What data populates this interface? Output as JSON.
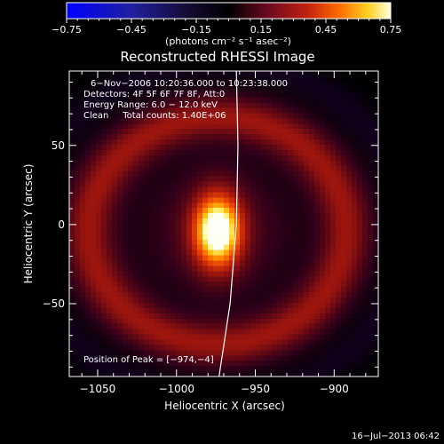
{
  "chart_data": {
    "type": "heatmap",
    "title": "Reconstructed RHESSI Image",
    "xlabel": "Heliocentric X (arcsec)",
    "ylabel": "Heliocentric Y (arcsec)",
    "xlim": [
      -1068,
      -872
    ],
    "ylim": [
      -96,
      97
    ],
    "xticks": [
      -1050,
      -1000,
      -950,
      -900
    ],
    "yticks": [
      -50,
      0,
      50
    ],
    "xtick_labels": [
      "−1050",
      "−1000",
      "−950",
      "−900"
    ],
    "ytick_labels": [
      "−50",
      "0",
      "50"
    ],
    "colorbar": {
      "range": [
        -0.75,
        0.75
      ],
      "ticks": [
        -0.75,
        -0.45,
        -0.15,
        0.15,
        0.45,
        0.75
      ],
      "tick_labels": [
        "−0.75",
        "−0.45",
        "−0.15",
        "0.15",
        "0.45",
        "0.75"
      ],
      "unit_label": "(photons cm⁻² s⁻¹ asec⁻²)"
    },
    "annotations": [
      "6−Nov−2006 10:20:36.000 to 10:23:38.000",
      "Detectors: 4F 5F 6F 7F 8F, Att:0",
      "Energy Range: 6.0 − 12.0 keV",
      "Clean     Total counts: 1.40E+06"
    ],
    "peak_label": "Position of Peak = [−974,−4]",
    "peak": [
      -974,
      -4
    ],
    "limb_curve": [
      [
        -973,
        -96
      ],
      [
        -966,
        -50
      ],
      [
        -962,
        0
      ],
      [
        -961,
        50
      ],
      [
        -962,
        97
      ]
    ]
  },
  "footer_date": "16−Jul−2013 06:42"
}
